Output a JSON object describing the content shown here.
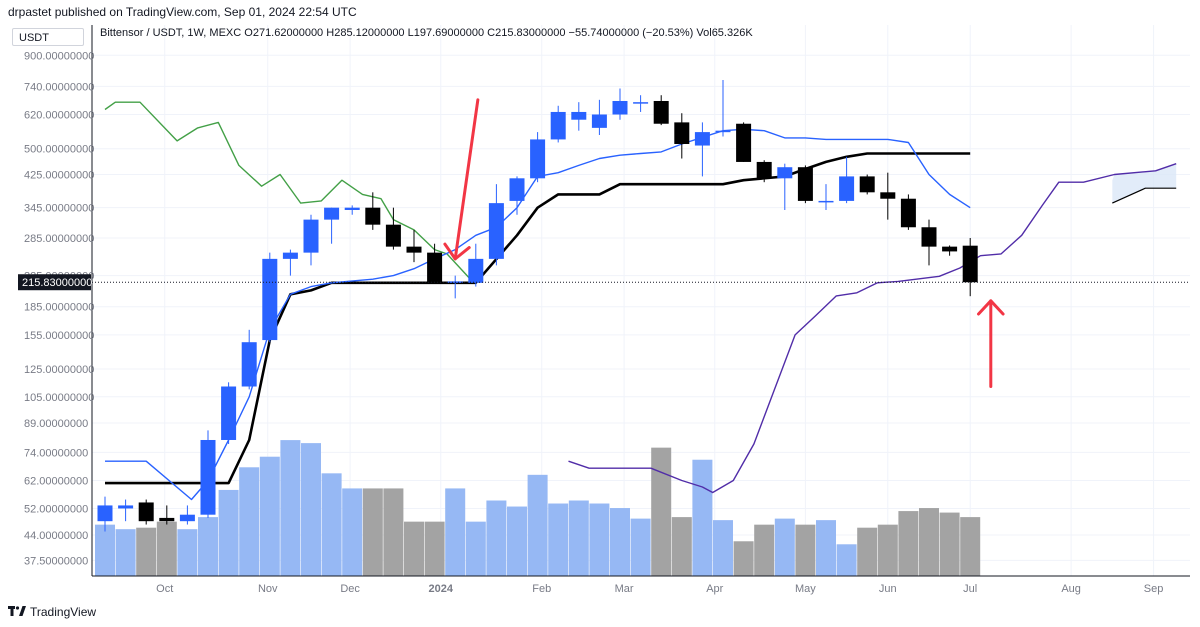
{
  "header": {
    "published": "drpastet published on TradingView.com, Sep 01, 2024 22:54 UTC"
  },
  "currency_button": "USDT",
  "legend": {
    "symbol": "Bittensor / USDT, 1W, MEXC",
    "o_label": "O",
    "o": "271.62000000",
    "h_label": "H",
    "h": "285.12000000",
    "l_label": "L",
    "l": "197.69000000",
    "c_label": "C",
    "c": "215.83000000",
    "change": "−55.74000000 (−20.53%)",
    "vol_label": "Vol",
    "vol": "65.326K"
  },
  "footer": {
    "brand": "TradingView"
  },
  "colors": {
    "up": "#2962ff",
    "down": "#000000",
    "vol_up": "#90b4f3",
    "vol_down": "#9e9e9e",
    "conversion": "#2962ff",
    "base": "#000000",
    "lagging": "#43a047",
    "lead_b": "#512da8",
    "cloud": "#dbe7f7",
    "arrow": "#f23645"
  },
  "chart_data": {
    "type": "candlestick",
    "interval": "1W",
    "y_scale": "log",
    "ylim": [
      34,
      960
    ],
    "price_ticks": [
      "900.00000000",
      "740.00000000",
      "620.00000000",
      "500.00000000",
      "425.00000000",
      "345.00000000",
      "285.00000000",
      "225.00000000",
      "185.00000000",
      "155.00000000",
      "125.00000000",
      "105.00000000",
      "89.00000000",
      "74.00000000",
      "62.00000000",
      "52.00000000",
      "44.00000000",
      "37.50000000"
    ],
    "last_price_label": "215.83000000",
    "x_labels": [
      {
        "text": "Oct",
        "index": 2.9
      },
      {
        "text": "Nov",
        "index": 7.9
      },
      {
        "text": "Dec",
        "index": 11.9
      },
      {
        "text": "2024",
        "index": 16.3
      },
      {
        "text": "Feb",
        "index": 21.2
      },
      {
        "text": "Mar",
        "index": 25.2
      },
      {
        "text": "Apr",
        "index": 29.6
      },
      {
        "text": "May",
        "index": 34.0
      },
      {
        "text": "Jun",
        "index": 38.0
      },
      {
        "text": "Jul",
        "index": 42.0
      },
      {
        "text": "Aug",
        "index": 46.9
      },
      {
        "text": "Sep",
        "index": 50.9
      }
    ],
    "candles": [
      {
        "o": 48,
        "h": 56,
        "l": 45,
        "c": 53
      },
      {
        "o": 52,
        "h": 55,
        "l": 48,
        "c": 53
      },
      {
        "o": 54,
        "h": 55,
        "l": 47,
        "c": 48
      },
      {
        "o": 49,
        "h": 53,
        "l": 47,
        "c": 48
      },
      {
        "o": 48,
        "h": 53,
        "l": 47,
        "c": 50
      },
      {
        "o": 50,
        "h": 85,
        "l": 49,
        "c": 80
      },
      {
        "o": 80,
        "h": 115,
        "l": 78,
        "c": 112
      },
      {
        "o": 112,
        "h": 160,
        "l": 110,
        "c": 148
      },
      {
        "o": 150,
        "h": 260,
        "l": 148,
        "c": 250
      },
      {
        "o": 250,
        "h": 265,
        "l": 225,
        "c": 260
      },
      {
        "o": 260,
        "h": 330,
        "l": 240,
        "c": 320
      },
      {
        "o": 320,
        "h": 345,
        "l": 275,
        "c": 345
      },
      {
        "o": 340,
        "h": 350,
        "l": 330,
        "c": 345
      },
      {
        "o": 345,
        "h": 380,
        "l": 300,
        "c": 310
      },
      {
        "o": 310,
        "h": 345,
        "l": 265,
        "c": 270
      },
      {
        "o": 270,
        "h": 300,
        "l": 245,
        "c": 260
      },
      {
        "o": 260,
        "h": 275,
        "l": 215,
        "c": 215
      },
      {
        "o": 215,
        "h": 225,
        "l": 195,
        "c": 217
      },
      {
        "o": 215,
        "h": 275,
        "l": 210,
        "c": 250
      },
      {
        "o": 250,
        "h": 400,
        "l": 240,
        "c": 355
      },
      {
        "o": 360,
        "h": 420,
        "l": 330,
        "c": 415
      },
      {
        "o": 415,
        "h": 555,
        "l": 405,
        "c": 530
      },
      {
        "o": 530,
        "h": 655,
        "l": 520,
        "c": 630
      },
      {
        "o": 600,
        "h": 670,
        "l": 560,
        "c": 630
      },
      {
        "o": 570,
        "h": 680,
        "l": 545,
        "c": 620
      },
      {
        "o": 620,
        "h": 730,
        "l": 600,
        "c": 675
      },
      {
        "o": 670,
        "h": 700,
        "l": 630,
        "c": 670
      },
      {
        "o": 675,
        "h": 700,
        "l": 580,
        "c": 585
      },
      {
        "o": 590,
        "h": 625,
        "l": 470,
        "c": 515
      },
      {
        "o": 510,
        "h": 590,
        "l": 420,
        "c": 555
      },
      {
        "o": 555,
        "h": 770,
        "l": 540,
        "c": 560
      },
      {
        "o": 585,
        "h": 590,
        "l": 460,
        "c": 460
      },
      {
        "o": 460,
        "h": 465,
        "l": 405,
        "c": 415
      },
      {
        "o": 415,
        "h": 455,
        "l": 340,
        "c": 445
      },
      {
        "o": 445,
        "h": 450,
        "l": 355,
        "c": 360
      },
      {
        "o": 360,
        "h": 400,
        "l": 340,
        "c": 360
      },
      {
        "o": 360,
        "h": 475,
        "l": 355,
        "c": 420
      },
      {
        "o": 420,
        "h": 425,
        "l": 375,
        "c": 380
      },
      {
        "o": 380,
        "h": 430,
        "l": 320,
        "c": 365
      },
      {
        "o": 365,
        "h": 375,
        "l": 300,
        "c": 305
      },
      {
        "o": 305,
        "h": 320,
        "l": 240,
        "c": 270
      },
      {
        "o": 270,
        "h": 272,
        "l": 255,
        "c": 262
      },
      {
        "o": 271.62,
        "h": 285.12,
        "l": 197.69,
        "c": 215.83
      }
    ],
    "volume_series": {
      "max": 100,
      "values": [
        34,
        31,
        32,
        36,
        31,
        39,
        57,
        72,
        79,
        90,
        88,
        68,
        58,
        58,
        58,
        36,
        36,
        58,
        36,
        50,
        46,
        67,
        48,
        50,
        48,
        45,
        38,
        85,
        39,
        77,
        37,
        23,
        34,
        38,
        34,
        37,
        21,
        32,
        34,
        43,
        45,
        42,
        39
      ]
    },
    "conversion_line": [
      [
        0,
        70
      ],
      [
        2,
        70
      ],
      [
        4.2,
        55
      ],
      [
        5,
        62
      ],
      [
        6,
        80
      ],
      [
        7,
        105
      ],
      [
        8,
        160
      ],
      [
        9,
        200
      ],
      [
        10,
        210
      ],
      [
        11,
        215
      ],
      [
        13,
        220
      ],
      [
        14,
        225
      ],
      [
        15,
        235
      ],
      [
        16,
        250
      ],
      [
        17,
        265
      ],
      [
        18,
        290
      ],
      [
        19,
        305
      ],
      [
        20,
        345
      ],
      [
        21,
        420
      ],
      [
        22,
        430
      ],
      [
        23,
        450
      ],
      [
        24,
        470
      ],
      [
        25,
        480
      ],
      [
        26,
        485
      ],
      [
        27,
        490
      ],
      [
        28,
        515
      ],
      [
        30,
        560
      ],
      [
        31,
        565
      ],
      [
        32,
        560
      ],
      [
        33,
        535
      ],
      [
        34,
        535
      ],
      [
        35,
        530
      ],
      [
        38,
        530
      ],
      [
        39,
        520
      ],
      [
        40,
        425
      ],
      [
        41,
        375
      ],
      [
        42,
        345
      ]
    ],
    "base_line": [
      [
        0,
        61
      ],
      [
        6,
        61
      ],
      [
        7,
        80
      ],
      [
        8,
        150
      ],
      [
        9,
        200
      ],
      [
        10,
        205
      ],
      [
        11,
        215
      ],
      [
        16.6,
        215
      ],
      [
        18,
        215
      ],
      [
        20,
        290
      ],
      [
        21,
        345
      ],
      [
        22,
        375
      ],
      [
        24,
        375
      ],
      [
        25,
        400
      ],
      [
        30,
        400
      ],
      [
        31,
        410
      ],
      [
        33,
        420
      ],
      [
        34,
        440
      ],
      [
        35,
        460
      ],
      [
        36,
        475
      ],
      [
        37,
        485
      ],
      [
        38,
        485
      ],
      [
        42,
        485
      ]
    ],
    "lagging_span": [
      [
        0,
        640
      ],
      [
        0.5,
        670
      ],
      [
        1.7,
        670
      ],
      [
        3.5,
        525
      ],
      [
        4.5,
        570
      ],
      [
        5.5,
        590
      ],
      [
        6.5,
        450
      ],
      [
        7.6,
        395
      ],
      [
        8.5,
        425
      ],
      [
        9.5,
        355
      ],
      [
        10.5,
        360
      ],
      [
        11.5,
        410
      ],
      [
        12.5,
        375
      ],
      [
        13.4,
        365
      ],
      [
        14,
        320
      ],
      [
        15,
        300
      ],
      [
        16,
        265
      ],
      [
        16.6,
        258
      ],
      [
        17.8,
        218
      ]
    ],
    "leading_span_b": [
      [
        22.5,
        70
      ],
      [
        23.5,
        67
      ],
      [
        26.5,
        67
      ],
      [
        28,
        62
      ],
      [
        29,
        59.5
      ],
      [
        29.5,
        57.5
      ],
      [
        30.5,
        62
      ],
      [
        31.5,
        78
      ],
      [
        32.5,
        110
      ],
      [
        33.5,
        155
      ],
      [
        34.5,
        175
      ],
      [
        35.5,
        198
      ],
      [
        36.5,
        202
      ],
      [
        37.5,
        215
      ],
      [
        38.5,
        217
      ],
      [
        40.5,
        224
      ],
      [
        41.5,
        236
      ],
      [
        42.5,
        255
      ],
      [
        43.5,
        258
      ],
      [
        44.5,
        290
      ],
      [
        45.5,
        350
      ],
      [
        46.3,
        405
      ],
      [
        47.5,
        405
      ],
      [
        49,
        425
      ],
      [
        51,
        435
      ],
      [
        52,
        455
      ]
    ],
    "leading_span_a": [
      [
        48.9,
        355
      ],
      [
        50.5,
        390
      ],
      [
        52,
        390
      ]
    ],
    "annotations": [
      {
        "type": "arrow-down",
        "from": [
          18.1,
          680
        ],
        "to": [
          17.0,
          250
        ]
      },
      {
        "type": "arrow-up",
        "from": [
          43.0,
          112
        ],
        "to": [
          43.0,
          192
        ]
      }
    ]
  }
}
